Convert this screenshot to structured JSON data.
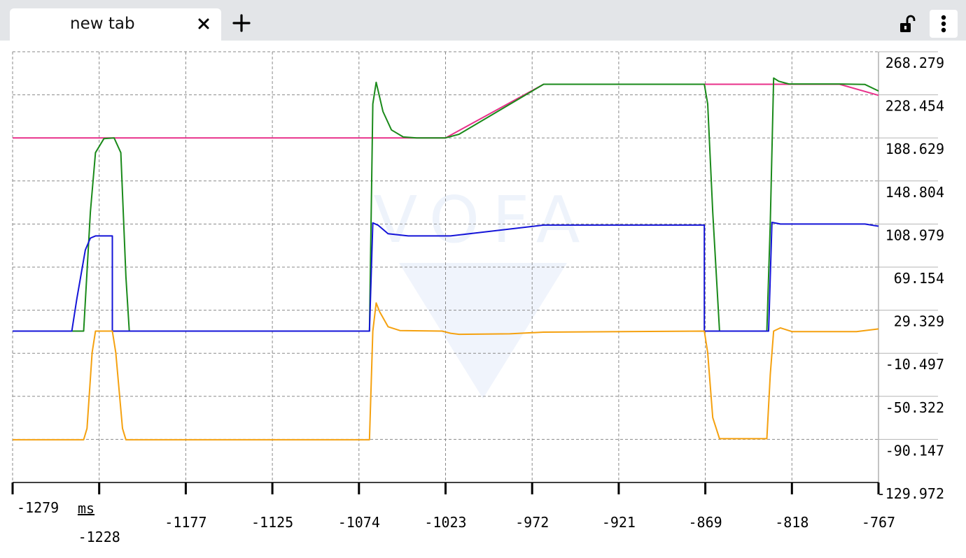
{
  "tab": {
    "title": "new tab",
    "close_icon": "close-icon",
    "new_tab_icon": "plus-icon"
  },
  "toolbar": {
    "lock_icon": "unlocked-padlock-icon",
    "menu_icon": "vertical-ellipsis-icon"
  },
  "watermark": {
    "text": "VOFA"
  },
  "chart_data": {
    "type": "line",
    "xlabel_unit": "ms",
    "xlim": [
      -1279,
      -767
    ],
    "ylim": [
      -129.972,
      268.279
    ],
    "x_ticks": [
      "-1279",
      "-1228",
      "-1177",
      "-1125",
      "-1074",
      "-1023",
      "-972",
      "-921",
      "-869",
      "-818",
      "-767"
    ],
    "y_ticks": [
      "268.279",
      "228.454",
      "188.629",
      "148.804",
      "108.979",
      "69.154",
      "29.329",
      "-10.497",
      "-50.322",
      "-90.147",
      "-129.972"
    ],
    "grid": true,
    "series": [
      {
        "color": "#e8308a",
        "points": [
          [
            -1279,
            188.6
          ],
          [
            -1023,
            188.6
          ],
          [
            -965,
            238.2
          ],
          [
            -830,
            238.2
          ],
          [
            -790,
            238.2
          ],
          [
            -767,
            228.0
          ]
        ]
      },
      {
        "color": "#1a8a1a",
        "points": [
          [
            -1279,
            10.0
          ],
          [
            -1237,
            10.0
          ],
          [
            -1233,
            120.0
          ],
          [
            -1230,
            175.0
          ],
          [
            -1225,
            188.0
          ],
          [
            -1219,
            188.6
          ],
          [
            -1215,
            175.0
          ],
          [
            -1212,
            60.0
          ],
          [
            -1210,
            10.0
          ],
          [
            -1068,
            10.0
          ],
          [
            -1066,
            220.0
          ],
          [
            -1064,
            240.0
          ],
          [
            -1060,
            213.0
          ],
          [
            -1055,
            196.0
          ],
          [
            -1048,
            189.5
          ],
          [
            -1040,
            188.6
          ],
          [
            -1023,
            188.6
          ],
          [
            -1015,
            192.0
          ],
          [
            -965,
            238.2
          ],
          [
            -870,
            238.2
          ],
          [
            -868,
            220.0
          ],
          [
            -865,
            120.0
          ],
          [
            -861,
            10.0
          ],
          [
            -833,
            10.0
          ],
          [
            -831,
            110.0
          ],
          [
            -829,
            244.0
          ],
          [
            -826,
            241.0
          ],
          [
            -820,
            238.5
          ],
          [
            -790,
            238.5
          ],
          [
            -775,
            238.0
          ],
          [
            -767,
            232.0
          ]
        ]
      },
      {
        "color": "#1414d8",
        "points": [
          [
            -1279,
            10.0
          ],
          [
            -1244,
            10.0
          ],
          [
            -1241,
            40.0
          ],
          [
            -1236,
            85.0
          ],
          [
            -1233,
            96.0
          ],
          [
            -1230,
            98.0
          ],
          [
            -1220,
            98.0
          ],
          [
            -1220,
            10.0
          ],
          [
            -1068,
            10.0
          ],
          [
            -1066,
            110.0
          ],
          [
            -1063,
            108.0
          ],
          [
            -1057,
            100.0
          ],
          [
            -1045,
            98.0
          ],
          [
            -1020,
            98.0
          ],
          [
            -965,
            108.0
          ],
          [
            -870,
            108.0
          ],
          [
            -870,
            10.0
          ],
          [
            -832,
            10.0
          ],
          [
            -830,
            110.5
          ],
          [
            -825,
            109.0
          ],
          [
            -775,
            109.0
          ],
          [
            -767,
            107.0
          ]
        ]
      },
      {
        "color": "#f5a10f",
        "points": [
          [
            -1279,
            -90.5
          ],
          [
            -1237,
            -90.5
          ],
          [
            -1235,
            -80.0
          ],
          [
            -1232,
            -10.0
          ],
          [
            -1230,
            10.0
          ],
          [
            -1220,
            10.0
          ],
          [
            -1218,
            -10.0
          ],
          [
            -1214,
            -80.0
          ],
          [
            -1212,
            -90.5
          ],
          [
            -1068,
            -90.5
          ],
          [
            -1066,
            10.0
          ],
          [
            -1064,
            36.0
          ],
          [
            -1062,
            28.0
          ],
          [
            -1057,
            14.0
          ],
          [
            -1050,
            10.5
          ],
          [
            -1025,
            10.0
          ],
          [
            -1020,
            8.0
          ],
          [
            -1015,
            7.0
          ],
          [
            -985,
            7.5
          ],
          [
            -965,
            9.0
          ],
          [
            -870,
            10.0
          ],
          [
            -868,
            -10.0
          ],
          [
            -865,
            -70.0
          ],
          [
            -861,
            -89.5
          ],
          [
            -833,
            -89.5
          ],
          [
            -831,
            -30.0
          ],
          [
            -829,
            10.0
          ],
          [
            -825,
            13.0
          ],
          [
            -818,
            9.5
          ],
          [
            -780,
            9.5
          ],
          [
            -775,
            10.5
          ],
          [
            -767,
            12.0
          ]
        ]
      }
    ]
  }
}
